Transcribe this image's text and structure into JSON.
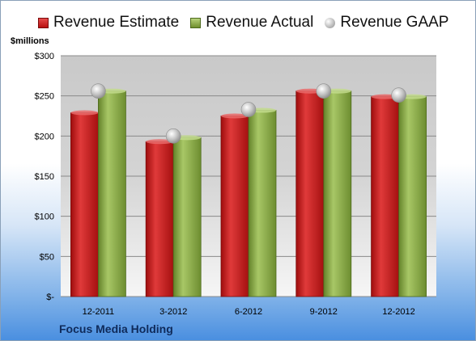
{
  "legend": {
    "estimate": "Revenue Estimate",
    "actual": "Revenue Actual",
    "gaap": "Revenue GAAP"
  },
  "unit_label": "$millions",
  "company": "Focus Media Holding",
  "colors": {
    "estimate": "#c81a1a",
    "actual": "#8aab45",
    "gaap": "#bdbdbd",
    "company_text": "#0f2a5a"
  },
  "chart_data": {
    "type": "bar",
    "categories": [
      "12-2011",
      "3-2012",
      "6-2012",
      "9-2012",
      "12-2012"
    ],
    "series": [
      {
        "name": "Revenue Estimate",
        "values": [
          229,
          193,
          225,
          256,
          249
        ]
      },
      {
        "name": "Revenue Actual",
        "values": [
          256,
          198,
          232,
          256,
          249
        ]
      },
      {
        "name": "Revenue GAAP",
        "values": [
          256,
          200,
          233,
          256,
          251
        ]
      }
    ],
    "ylim": [
      0,
      300
    ],
    "yticks": [
      0,
      50,
      100,
      150,
      200,
      250,
      300
    ],
    "ytick_labels": [
      "$-",
      "$50",
      "$100",
      "$150",
      "$200",
      "$250",
      "$300"
    ],
    "grid": true,
    "legend_position": "top"
  }
}
